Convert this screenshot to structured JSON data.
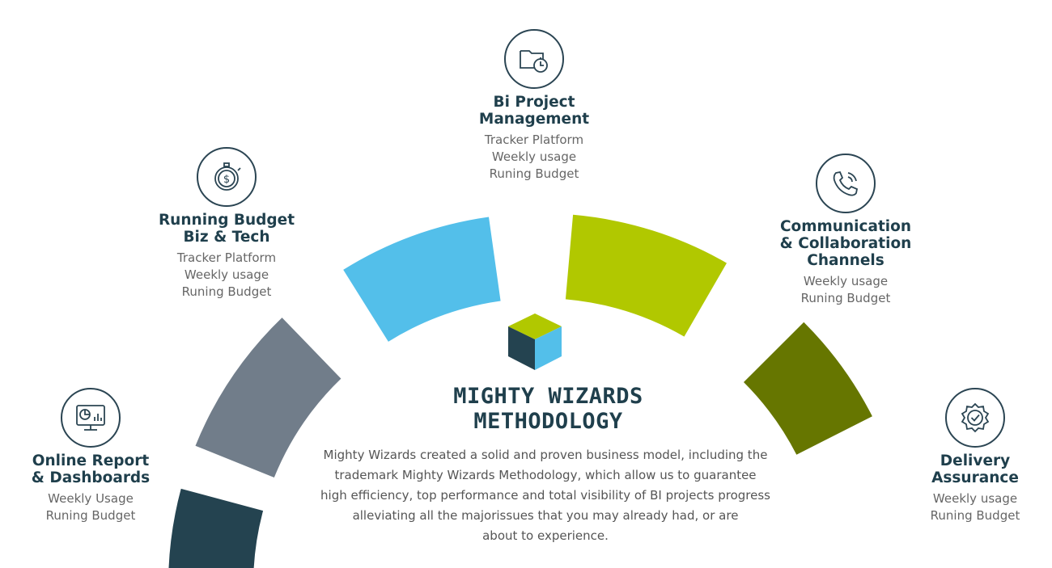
{
  "colors": {
    "seg1": "#244350",
    "seg2": "#717d8a",
    "seg3": "#53bfea",
    "seg4": "#b1c800",
    "seg5": "#667600",
    "title": "#1f3f4c",
    "text": "#666666"
  },
  "nodes": [
    {
      "icon": "dashboard-monitor-icon",
      "title": [
        "Online Report",
        "& Dashboards"
      ],
      "lines": [
        "Weekly Usage",
        "Runing Budget"
      ]
    },
    {
      "icon": "stopwatch-dollar-icon",
      "title": [
        "Running Budget",
        "Biz & Tech"
      ],
      "lines": [
        "Tracker Platform",
        "Weekly usage",
        "Runing Budget"
      ]
    },
    {
      "icon": "folder-clock-icon",
      "title": [
        "Bi Project",
        "Management"
      ],
      "lines": [
        "Tracker Platform",
        "Weekly usage",
        "Runing Budget"
      ]
    },
    {
      "icon": "phone-call-icon",
      "title": [
        "Communication",
        "& Collaboration",
        "Channels"
      ],
      "lines": [
        "Weekly usage",
        "Runing Budget"
      ]
    },
    {
      "icon": "badge-check-icon",
      "title": [
        "Delivery",
        "Assurance"
      ],
      "lines": [
        "Weekly usage",
        "Runing Budget"
      ]
    }
  ],
  "center": {
    "logo_icon": "cube-logo-icon",
    "title": [
      "MIGHTY WIZARDS",
      "METHODOLOGY"
    ],
    "description": [
      "Mighty Wizards created a solid and proven business model, including the",
      "trademark Mighty Wizards Methodology, which allow us to guarantee",
      "high efficiency, top performance and total visibility of BI projects progress",
      "alleviating all the majorissues that you may already had, or are",
      "about to experience."
    ]
  }
}
